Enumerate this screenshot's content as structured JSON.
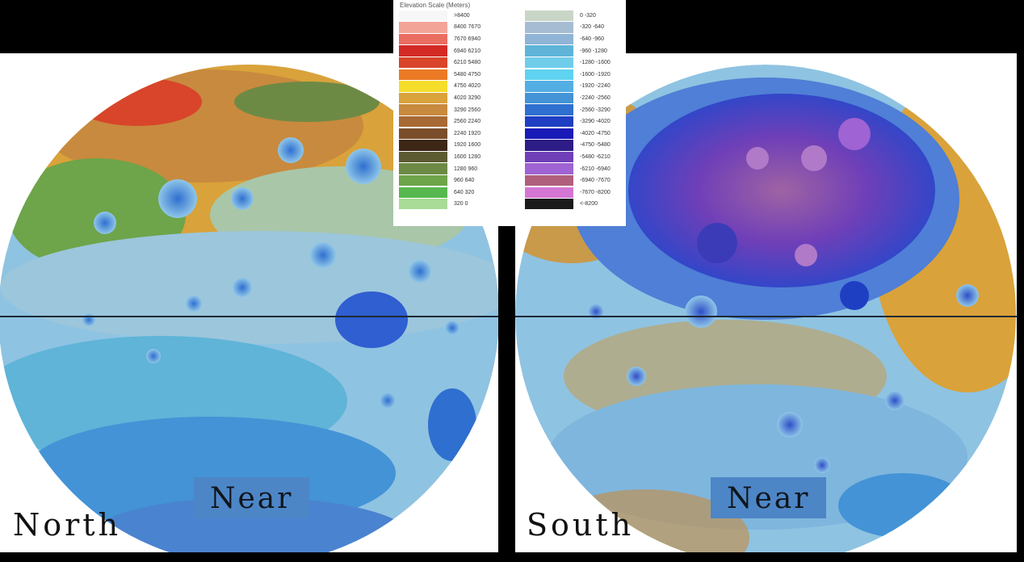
{
  "legend": {
    "title": "Elevation Scale (Meters)",
    "left_column": [
      {
        "label": ">8400",
        "color": "#f7f7f7"
      },
      {
        "label": "8400 7670",
        "color": "#f2a597"
      },
      {
        "label": "7670 6940",
        "color": "#ea6d62"
      },
      {
        "label": "6940 6210",
        "color": "#d42a26"
      },
      {
        "label": "6210 5480",
        "color": "#d8452a"
      },
      {
        "label": "5480 4750",
        "color": "#ec7a24"
      },
      {
        "label": "4750 4020",
        "color": "#f5dd2b"
      },
      {
        "label": "4020 3290",
        "color": "#d9a23a"
      },
      {
        "label": "3290 2560",
        "color": "#c88a3e"
      },
      {
        "label": "2560 2240",
        "color": "#a86a34"
      },
      {
        "label": "2240 1920",
        "color": "#7a4e2a"
      },
      {
        "label": "1920 1600",
        "color": "#3d2717"
      },
      {
        "label": "1600 1280",
        "color": "#5b5a30"
      },
      {
        "label": "1280 960",
        "color": "#6d8a45"
      },
      {
        "label": "960 640",
        "color": "#6ea44a"
      },
      {
        "label": "640 320",
        "color": "#57b84f"
      },
      {
        "label": "320 0",
        "color": "#a9dc96"
      }
    ],
    "right_column": [
      {
        "label": "0 -320",
        "color": "#c9d6c7"
      },
      {
        "label": "-320 -640",
        "color": "#a6bcd3"
      },
      {
        "label": "-640 -960",
        "color": "#8fb4d6"
      },
      {
        "label": "-960 -1280",
        "color": "#5fb4d8"
      },
      {
        "label": "-1280 -1600",
        "color": "#70cdea"
      },
      {
        "label": "-1600 -1920",
        "color": "#5fd3ef"
      },
      {
        "label": "-1920 -2240",
        "color": "#53aee3"
      },
      {
        "label": "-2240 -2560",
        "color": "#4393d6"
      },
      {
        "label": "-2560 -3290",
        "color": "#2f6fd0"
      },
      {
        "label": "-3290 -4020",
        "color": "#1f3fc3"
      },
      {
        "label": "-4020 -4750",
        "color": "#1a1ab8"
      },
      {
        "label": "-4750 -5480",
        "color": "#2d1c86"
      },
      {
        "label": "-5480 -6210",
        "color": "#6f3fb8"
      },
      {
        "label": "-6210 -6940",
        "color": "#9f63d3"
      },
      {
        "label": "-6940 -7670",
        "color": "#b0607d"
      },
      {
        "label": "-7670 -8200",
        "color": "#d476d3"
      },
      {
        "label": "<-8200",
        "color": "#1a1a1a"
      }
    ]
  },
  "hemispheres": {
    "north": {
      "label": "North",
      "region_label": "Near"
    },
    "south": {
      "label": "South",
      "region_label": "Near"
    }
  }
}
